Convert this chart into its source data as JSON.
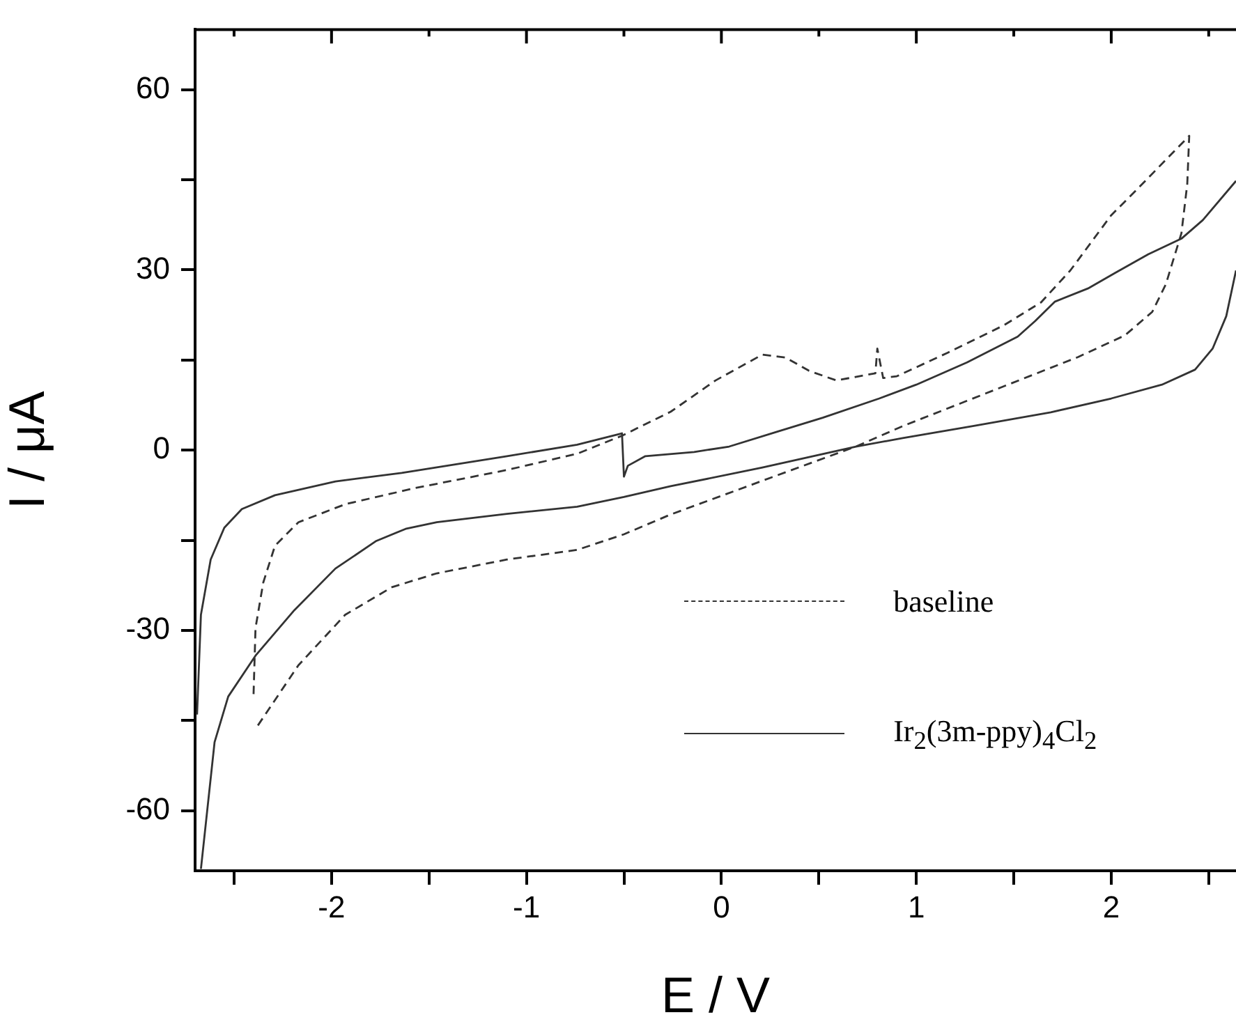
{
  "chart_data": {
    "type": "line",
    "xlabel": "E / V",
    "ylabel": "I / μA",
    "xlim": [
      -2.7,
      2.64
    ],
    "ylim": [
      -70,
      70
    ],
    "xticks": [
      {
        "value": -2.5,
        "label": null
      },
      -2,
      {
        "value": -1.5,
        "label": null
      },
      -1,
      {
        "value": -0.5,
        "label": null
      },
      0,
      {
        "value": 0.5,
        "label": null
      },
      1,
      {
        "value": 1.5,
        "label": null
      },
      2,
      {
        "value": 2.5,
        "label": null
      }
    ],
    "yticks": [
      {
        "value": -60,
        "label": "-60"
      },
      {
        "value": -45,
        "label": null
      },
      {
        "value": -30,
        "label": "-30"
      },
      {
        "value": -15,
        "label": null
      },
      0,
      {
        "value": 15,
        "label": null
      },
      30,
      {
        "value": 45,
        "label": null
      },
      60
    ],
    "grid": false,
    "legend": "right",
    "marker": "none",
    "series": [
      {
        "name": "baseline",
        "color": "#333333",
        "line_style": "dashed",
        "x": [
          -2.4,
          -2.39,
          -2.35,
          -2.29,
          -2.17,
          -1.93,
          -1.57,
          -1.1,
          -0.74,
          -0.51,
          -0.26,
          -0.03,
          0.21,
          0.33,
          0.45,
          0.59,
          0.79,
          0.8,
          0.83,
          0.9,
          1.16,
          1.45,
          1.64,
          1.79,
          2.0,
          2.12,
          2.4,
          2.39,
          2.36,
          2.28,
          2.21,
          2.07,
          1.83,
          1.4,
          0.93,
          0.69,
          0.21,
          -0.26,
          -0.5,
          -0.74,
          -1.1,
          -1.46,
          -1.69,
          -1.93,
          -2.17,
          -2.39
        ],
        "values": [
          -40.6,
          -29.6,
          -22.0,
          -15.9,
          -12.0,
          -9.0,
          -6.3,
          -3.3,
          -0.6,
          2.4,
          6.4,
          11.6,
          15.9,
          15.4,
          13.2,
          11.6,
          12.8,
          16.9,
          12.0,
          12.3,
          16.2,
          20.8,
          24.6,
          29.9,
          39.1,
          43.0,
          52.3,
          44.3,
          36.1,
          27.6,
          23.0,
          19.1,
          15.5,
          10.0,
          4.0,
          0.6,
          -5.1,
          -10.7,
          -14.0,
          -16.6,
          -18.2,
          -20.5,
          -22.8,
          -27.4,
          -35.8,
          -46.4
        ]
      },
      {
        "name": "Ir$_{2}$(3m-ppy)$_{4}$Cl$_{2}$",
        "color": "#333333",
        "line_style": "solid",
        "x": [
          -2.69,
          -2.67,
          -2.62,
          -2.55,
          -2.46,
          -2.29,
          -1.98,
          -1.64,
          -1.1,
          -0.74,
          -0.51,
          -0.5,
          -0.48,
          -0.39,
          -0.14,
          0.04,
          0.29,
          0.52,
          0.81,
          1.0,
          1.26,
          1.52,
          1.61,
          1.71,
          1.88,
          2.02,
          2.19,
          2.36,
          2.47,
          2.64,
          null,
          2.64,
          2.59,
          2.52,
          2.43,
          2.26,
          2.0,
          1.69,
          1.29,
          0.93,
          0.69,
          0.21,
          -0.26,
          -0.5,
          -0.74,
          -1.1,
          -1.46,
          -1.62,
          -1.77,
          -1.98,
          -2.19,
          -2.39,
          -2.53,
          -2.6,
          -2.67
        ],
        "values": [
          -44,
          -27.4,
          -18.2,
          -12.9,
          -9.8,
          -7.5,
          -5.2,
          -3.8,
          -1.0,
          0.9,
          2.8,
          -4.4,
          -2.6,
          -1.0,
          -0.3,
          0.6,
          3.1,
          5.4,
          8.6,
          10.9,
          14.6,
          18.9,
          21.5,
          24.7,
          26.9,
          29.5,
          32.6,
          35.2,
          38.3,
          44.8,
          null,
          29.9,
          22.3,
          16.9,
          13.4,
          10.9,
          8.6,
          6.3,
          4.0,
          2.0,
          0.6,
          -2.9,
          -6.0,
          -7.8,
          -9.4,
          -10.6,
          -12.0,
          -13.1,
          -15.1,
          -19.7,
          -26.6,
          -34.2,
          -41.0,
          -48.6,
          -69.7
        ]
      }
    ]
  }
}
